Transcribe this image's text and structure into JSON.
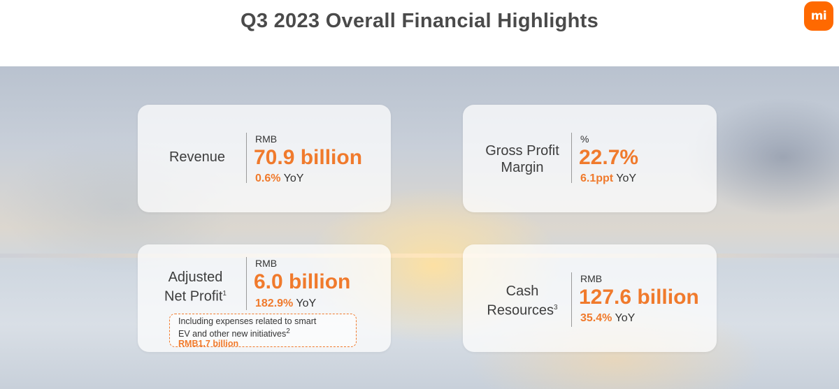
{
  "header": {
    "title": "Q3 2023 Overall Financial Highlights",
    "logo": "mi"
  },
  "cards": {
    "revenue": {
      "label": "Revenue",
      "unit": "RMB",
      "value": "70.9 billion",
      "yoy_value": "0.6%",
      "yoy_suffix": " YoY"
    },
    "gross_margin": {
      "label_line1": "Gross Profit",
      "label_line2": "Margin",
      "unit": "%",
      "value": "22.7%",
      "yoy_value": "6.1ppt",
      "yoy_suffix": " YoY"
    },
    "adjusted_net_profit": {
      "label_line1": "Adjusted",
      "label_line2": "Net Profit",
      "label_sup": "1",
      "unit": "RMB",
      "value": "6.0 billion",
      "yoy_value": "182.9%",
      "yoy_suffix": " YoY",
      "note_line1": "Including expenses related to smart",
      "note_line2": "EV and other new initiatives",
      "note_sup": "2",
      "note_amount": "RMB1.7 billion"
    },
    "cash_resources": {
      "label_line1": "Cash",
      "label_line2": "Resources",
      "label_sup": "3",
      "unit": "RMB",
      "value": "127.6 billion",
      "yoy_value": "35.4%",
      "yoy_suffix": " YoY"
    }
  },
  "colors": {
    "accent": "#f07a2c",
    "title": "#4a4a4a",
    "logo_bg": "#ff6900"
  },
  "icons": {
    "yoy_trend": "triangle-up-icon"
  }
}
